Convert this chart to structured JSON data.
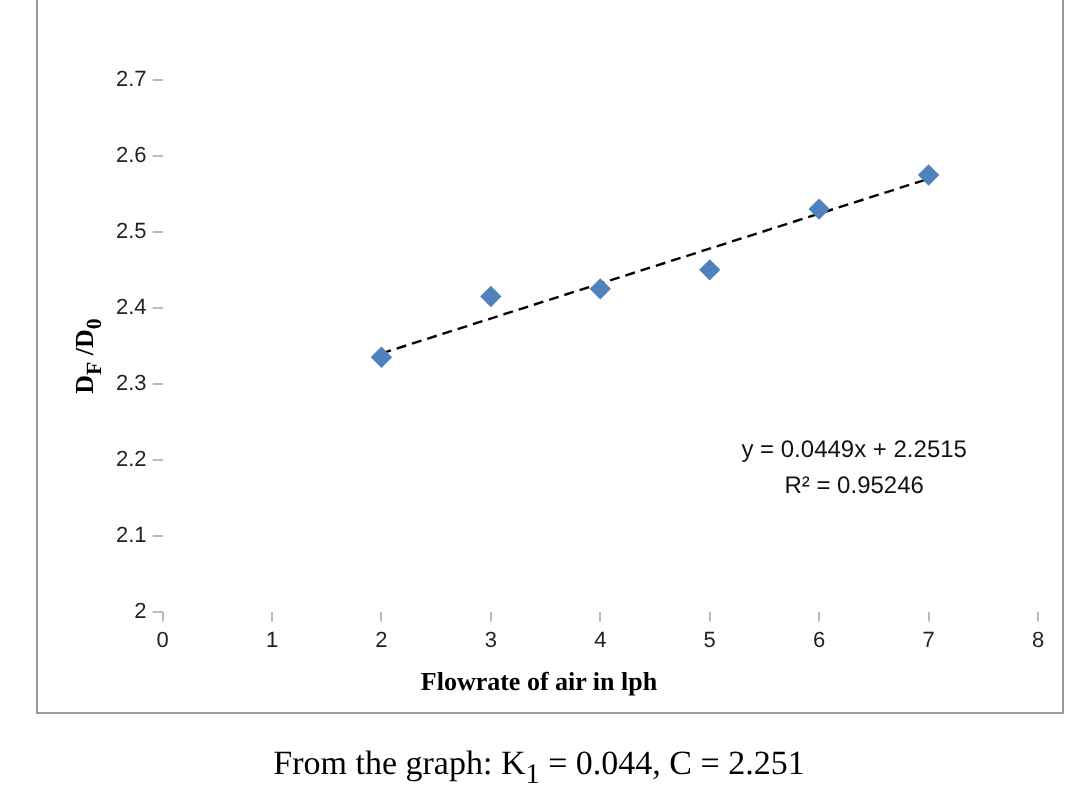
{
  "chart_data": {
    "type": "scatter",
    "xlabel": "Flowrate of air in lph",
    "ylabel": "D$_{F}$ /D$_{0}$",
    "annotations": [
      "y = 0.0449x + 2.2515",
      "R² = 0.95246",
      "From the graph: K$_{1}$ = 0.044, C = 2.251"
    ],
    "xlim": [
      0,
      8
    ],
    "xticks": [
      0,
      1,
      2,
      3,
      4,
      5,
      6,
      7,
      8
    ],
    "ylim": [
      2,
      2.7
    ],
    "yticks": [
      2,
      2.1,
      2.2,
      2.3,
      2.4,
      2.5,
      2.6,
      2.7
    ],
    "grid": false,
    "legend": false,
    "marker": "diamond",
    "series": [
      {
        "color": "#4f81bd",
        "x": [
          2,
          3,
          4,
          5,
          6,
          7
        ],
        "values": [
          2.335,
          2.415,
          2.425,
          2.45,
          2.53,
          2.575
        ]
      },
      {
        "type": "line",
        "color": "#000000",
        "line_style": "dashed",
        "marker": "none",
        "x": [
          2,
          7
        ],
        "values": [
          2.34,
          2.57
        ]
      }
    ]
  }
}
